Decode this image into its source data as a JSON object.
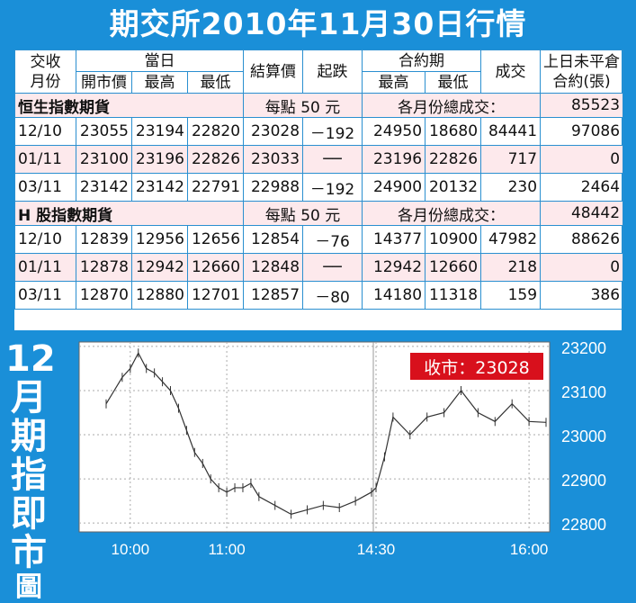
{
  "title": "期交所2010年11月30日行情",
  "table": {
    "headers": {
      "month_top": "交收",
      "month_bottom": "月份",
      "day": "當日",
      "open": "開市價",
      "high": "最高",
      "low": "最低",
      "settle": "結算價",
      "change": "起跌",
      "contract_period": "合約期",
      "cp_high": "最高",
      "cp_low": "最低",
      "volume": "成交",
      "oi_top": "上日未平倉",
      "oi_bottom": "合約(張)"
    },
    "groups": [
      {
        "name": "恒生指數期貨",
        "per_point": "每點 50 元",
        "total_label": "各月份總成交：",
        "total": "85523",
        "rows": [
          {
            "month": "12/10",
            "open": "23055",
            "high": "23194",
            "low": "22820",
            "settle": "23028",
            "change": "－192",
            "cp_high": "24950",
            "cp_low": "18680",
            "volume": "84441",
            "oi": "97086"
          },
          {
            "month": "01/11",
            "open": "23100",
            "high": "23196",
            "low": "22826",
            "settle": "23033",
            "change": "──",
            "cp_high": "23196",
            "cp_low": "22826",
            "volume": "717",
            "oi": "0"
          },
          {
            "month": "03/11",
            "open": "23142",
            "high": "23142",
            "low": "22791",
            "settle": "22988",
            "change": "－192",
            "cp_high": "24900",
            "cp_low": "20132",
            "volume": "230",
            "oi": "2464"
          }
        ]
      },
      {
        "name": "H 股指數期貨",
        "per_point": "每點 50 元",
        "total_label": "各月份總成交：",
        "total": "48442",
        "rows": [
          {
            "month": "12/10",
            "open": "12839",
            "high": "12956",
            "low": "12656",
            "settle": "12854",
            "change": "－76",
            "cp_high": "14377",
            "cp_low": "10900",
            "volume": "47982",
            "oi": "88626"
          },
          {
            "month": "01/11",
            "open": "12878",
            "high": "12942",
            "low": "12660",
            "settle": "12848",
            "change": "──",
            "cp_high": "12942",
            "cp_low": "12660",
            "volume": "218",
            "oi": "0"
          },
          {
            "month": "03/11",
            "open": "12870",
            "high": "12880",
            "low": "12701",
            "settle": "12857",
            "change": "－80",
            "cp_high": "14180",
            "cp_low": "11318",
            "volume": "159",
            "oi": "386"
          }
        ]
      }
    ]
  },
  "side_title": [
    "12",
    "月",
    "期",
    "指",
    "即",
    "市",
    "圖"
  ],
  "chart_data": {
    "type": "line",
    "close_label": "收市：23028",
    "x_ticks": [
      "10:00",
      "11:00",
      "14:30",
      "16:00"
    ],
    "y_ticks": [
      23200,
      23100,
      23000,
      22900,
      22800
    ],
    "ylim": [
      22780,
      23210
    ],
    "grid": true,
    "x": [
      "09:45",
      "09:55",
      "10:00",
      "10:05",
      "10:10",
      "10:15",
      "10:20",
      "10:25",
      "10:30",
      "10:35",
      "10:40",
      "10:45",
      "10:50",
      "10:55",
      "11:00",
      "11:05",
      "11:10",
      "11:15",
      "11:20",
      "11:30",
      "11:40",
      "11:50",
      "12:00",
      "12:10",
      "12:20",
      "12:30",
      "14:30",
      "14:35",
      "14:40",
      "14:50",
      "15:00",
      "15:10",
      "15:20",
      "15:30",
      "15:40",
      "15:50",
      "16:00",
      "16:10"
    ],
    "values": [
      23070,
      23130,
      23150,
      23185,
      23150,
      23140,
      23120,
      23100,
      23060,
      23010,
      22960,
      22935,
      22900,
      22880,
      22870,
      22880,
      22880,
      22890,
      22860,
      22840,
      22820,
      22830,
      22840,
      22835,
      22850,
      22870,
      22880,
      22950,
      23040,
      23000,
      23040,
      23050,
      23100,
      23050,
      23030,
      23070,
      23030,
      23028
    ],
    "colors": {
      "background": "#1a8fd8",
      "line": "#333333",
      "label_bg": "#d8101c"
    }
  }
}
